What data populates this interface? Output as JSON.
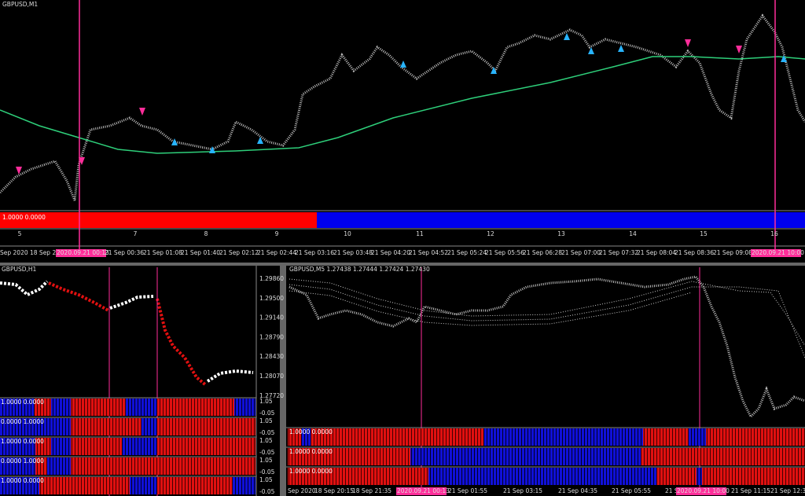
{
  "top_chart": {
    "title": "GBPUSD,M1",
    "indicator_label": "1.0000 0.0000",
    "day_labels": [
      "5",
      "7",
      "8",
      "9",
      "10",
      "11",
      "12",
      "13",
      "14",
      "15",
      "16"
    ],
    "time_labels": [
      "Sep 2020",
      "18 Sep 23",
      "2020.09.21 00:13",
      "21 Sep 00:36",
      "21 Sep 01:08",
      "21 Sep 01:40",
      "21 Sep 02:12",
      "21 Sep 02:44",
      "21 Sep 03:16",
      "21 Sep 03:48",
      "21 Sep 04:20",
      "21 Sep 04:52",
      "21 Sep 05:24",
      "21 Sep 05:56",
      "21 Sep 06:28",
      "21 Sep 07:00",
      "21 Sep 07:32",
      "21 Sep 08:04",
      "21 Sep 08:36",
      "21 Sep 09:08",
      "2020.09.21 10:00"
    ]
  },
  "h1_chart": {
    "title": "GBPUSD,H1",
    "price_labels": [
      "1.29860",
      "1.29500",
      "1.29140",
      "1.28790",
      "1.28430",
      "1.28070",
      "1.27720"
    ],
    "subpanels": [
      {
        "label": "1.0000 0.0000",
        "max": "1.05",
        "min": "-0.05"
      },
      {
        "label": "0.0000 1.0000",
        "max": "1.05",
        "min": "-0.05"
      },
      {
        "label": "1.0000 0.0000",
        "max": "1.05",
        "min": "-0.05"
      },
      {
        "label": "0.0000 1.0000",
        "max": "1.05",
        "min": "-0.05"
      },
      {
        "label": "1.0000 0.0000",
        "max": "1.05",
        "min": "-0.05"
      }
    ]
  },
  "m5_chart": {
    "title": "GBPUSD,M5  1.27438 1.27444 1.27424 1.27430",
    "subpanels": [
      {
        "label": "1.0000 0.0000"
      },
      {
        "label": "1.0000 0.0000"
      },
      {
        "label": "1.0000 0.0000"
      }
    ],
    "time_labels": [
      "Sep 2020",
      "18 Sep 20:15",
      "18 Sep 21:35",
      "2020.09.21 00:13",
      "21 Sep 01:55",
      "21 Sep 03:15",
      "21 Sep 04:35",
      "21 Sep 05:55",
      "21 Sep 07:15",
      "2020.09.21 10:00",
      "21 Sep 11:15",
      "21 Sep 12:35"
    ]
  }
}
